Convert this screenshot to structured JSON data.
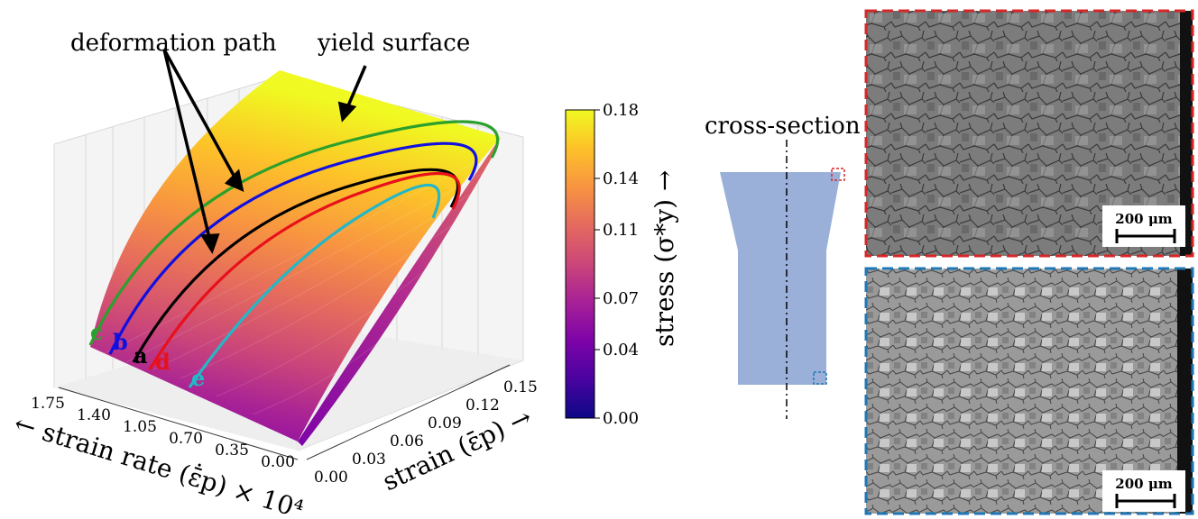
{
  "chart_data": {
    "type": "surface3d",
    "annotations": {
      "deformation_path": "deformation path",
      "yield_surface": "yield surface",
      "cross_section": "cross-section"
    },
    "x_axis": {
      "label": "strain (ε̄p) →",
      "ticks": [
        "0.00",
        "0.03",
        "0.06",
        "0.09",
        "0.12",
        "0.15"
      ],
      "range": [
        0.0,
        0.15
      ]
    },
    "y_axis": {
      "label": "← strain rate (ε̄̇p) × 10⁴",
      "ticks": [
        "0.00",
        "0.35",
        "0.70",
        "1.05",
        "1.40",
        "1.75"
      ],
      "range": [
        0.0,
        1.75
      ]
    },
    "colorbar": {
      "label": "stress (σ*y) →",
      "ticks": [
        "0.00",
        "0.04",
        "0.07",
        "0.11",
        "0.14",
        "0.18"
      ],
      "range": [
        0.0,
        0.18
      ],
      "colormap": "plasma"
    },
    "series": [
      {
        "name": "c",
        "color": "#2ca02c",
        "strain_rate": 1.75
      },
      {
        "name": "b",
        "color": "#1010e0",
        "strain_rate": 1.55
      },
      {
        "name": "a",
        "color": "#000000",
        "strain_rate": 1.35
      },
      {
        "name": "d",
        "color": "#e8101a",
        "strain_rate": 1.15
      },
      {
        "name": "e",
        "color": "#22b8c8",
        "strain_rate": 0.8
      }
    ],
    "micrographs": [
      {
        "border_color": "#d62728",
        "scale_bar": "200 μm"
      },
      {
        "border_color": "#1f77b4",
        "scale_bar": "200 μm"
      }
    ]
  }
}
